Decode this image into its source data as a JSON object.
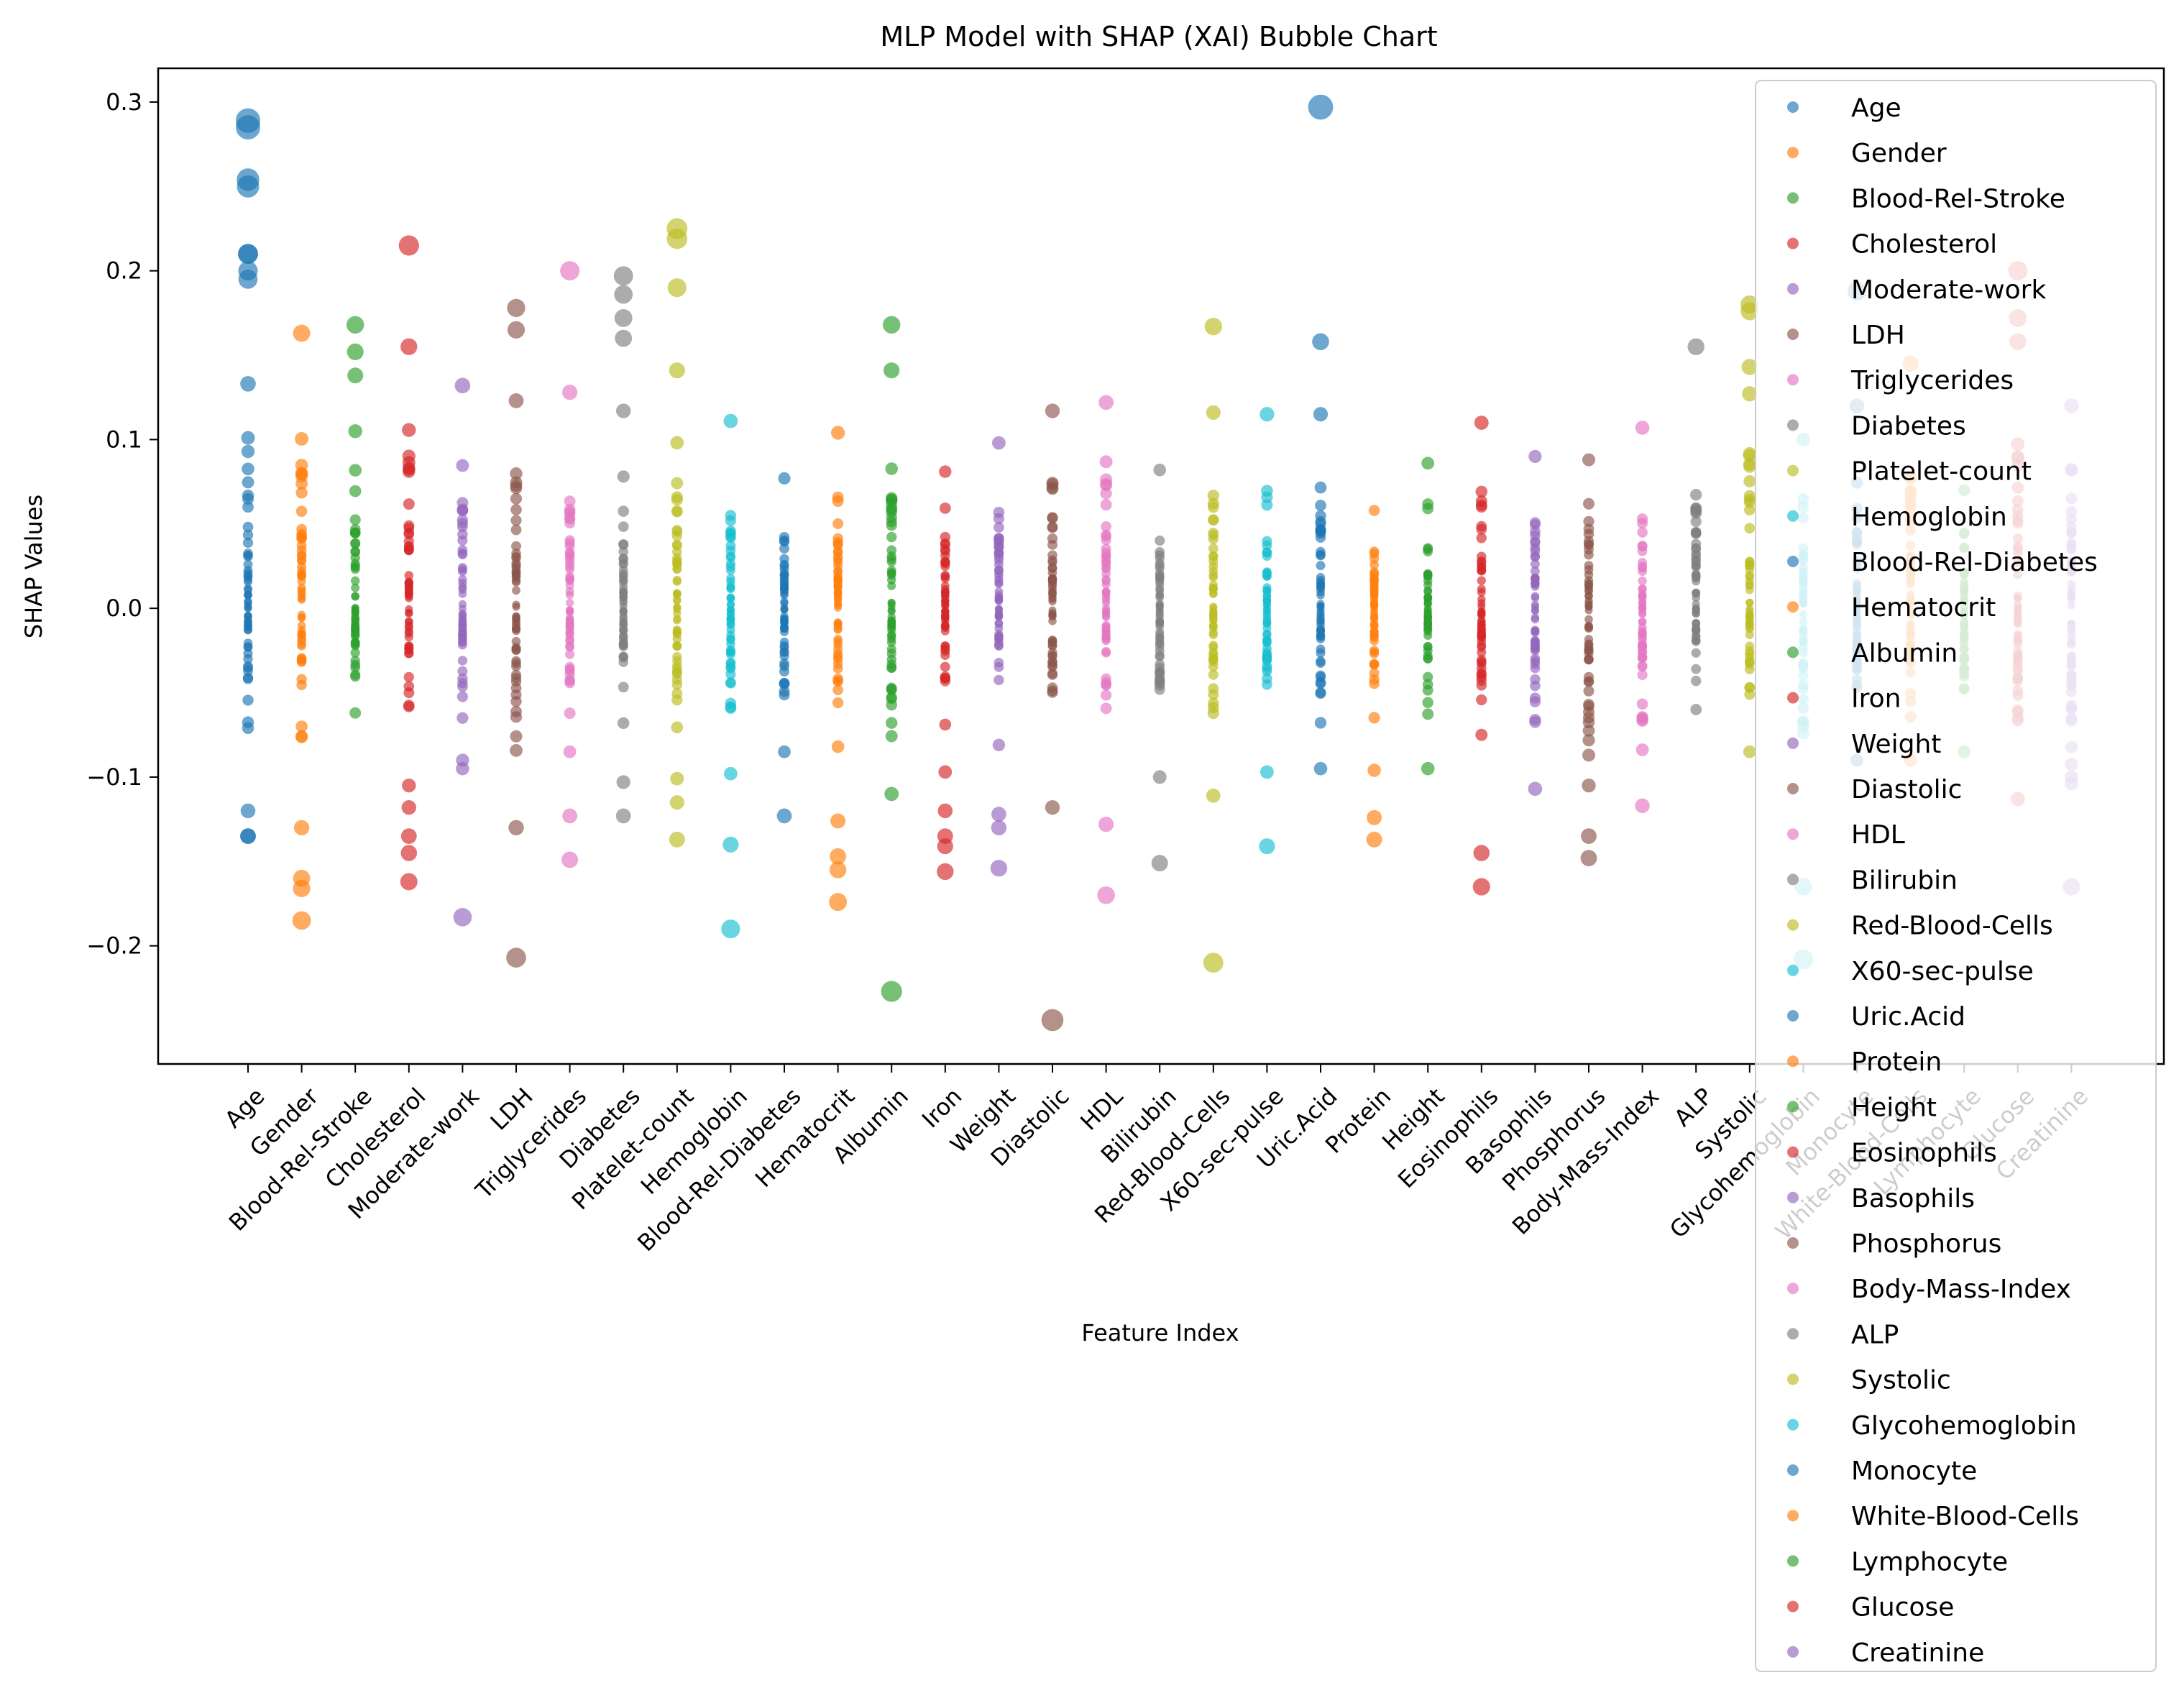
{
  "chart_data": {
    "type": "scatter",
    "title": "MLP Model with SHAP (XAI) Bubble Chart",
    "xlabel": "Feature Index",
    "ylabel": "SHAP Values",
    "ylim": [
      -0.27,
      0.32
    ],
    "yticks": [
      -0.2,
      -0.1,
      0.0,
      0.1,
      0.2,
      0.3
    ],
    "ytick_labels": [
      "−0.2",
      "−0.1",
      "0.0",
      "0.1",
      "0.2",
      "0.3"
    ],
    "legend_position": "upper right",
    "grid": false,
    "categories": [
      "Age",
      "Gender",
      "Blood-Rel-Stroke",
      "Cholesterol",
      "Moderate-work",
      "LDH",
      "Triglycerides",
      "Diabetes",
      "Platelet-count",
      "Hemoglobin",
      "Blood-Rel-Diabetes",
      "Hematocrit",
      "Albumin",
      "Iron",
      "Weight",
      "Diastolic",
      "HDL",
      "Bilirubin",
      "Red-Blood-Cells",
      "X60-sec-pulse",
      "Uric.Acid",
      "Protein",
      "Height",
      "Eosinophils",
      "Basophils",
      "Phosphorus",
      "Body-Mass-Index",
      "ALP",
      "Systolic",
      "Glycohemoglobin",
      "Monocyte",
      "White-Blood-Cells",
      "Lymphocyte",
      "Glucose",
      "Creatinine"
    ],
    "colors": [
      "#1f77b4",
      "#ff7f0e",
      "#2ca02c",
      "#d62728",
      "#9467bd",
      "#8c564b",
      "#e377c2",
      "#7f7f7f",
      "#bcbd22",
      "#17becf"
    ],
    "series": [
      {
        "name": "Age",
        "min": -0.135,
        "max": 0.21,
        "outliers": [
          0.289,
          0.285,
          0.254,
          0.25,
          0.21,
          0.2,
          0.195,
          -0.12,
          -0.135
        ]
      },
      {
        "name": "Gender",
        "min": -0.13,
        "max": 0.163,
        "outliers": [
          -0.16,
          -0.166,
          -0.185
        ]
      },
      {
        "name": "Blood-Rel-Stroke",
        "min": -0.062,
        "max": 0.138,
        "outliers": [
          0.168,
          0.152
        ]
      },
      {
        "name": "Cholesterol",
        "min": -0.105,
        "max": 0.155,
        "outliers": [
          0.215,
          -0.118,
          -0.135,
          -0.145,
          -0.162
        ]
      },
      {
        "name": "Moderate-work",
        "min": -0.065,
        "max": 0.132,
        "outliers": [
          -0.09,
          -0.095,
          -0.183
        ]
      },
      {
        "name": "LDH",
        "min": -0.13,
        "max": 0.123,
        "outliers": [
          0.178,
          0.165,
          -0.207
        ]
      },
      {
        "name": "Triglycerides",
        "min": -0.085,
        "max": 0.128,
        "outliers": [
          0.2,
          -0.123,
          -0.149
        ]
      },
      {
        "name": "Diabetes",
        "min": -0.068,
        "max": 0.117,
        "outliers": [
          0.197,
          0.186,
          0.172,
          0.16,
          -0.103,
          -0.123
        ]
      },
      {
        "name": "Platelet-count",
        "min": -0.137,
        "max": 0.141,
        "outliers": [
          0.225,
          0.219,
          0.19,
          -0.115
        ]
      },
      {
        "name": "Hemoglobin",
        "min": -0.098,
        "max": 0.111,
        "outliers": [
          -0.14,
          -0.19
        ]
      },
      {
        "name": "Blood-Rel-Diabetes",
        "min": -0.085,
        "max": 0.077,
        "outliers": [
          -0.123
        ]
      },
      {
        "name": "Hematocrit",
        "min": -0.082,
        "max": 0.104,
        "outliers": [
          -0.126,
          -0.147,
          -0.155,
          -0.174
        ]
      },
      {
        "name": "Albumin",
        "min": -0.11,
        "max": 0.141,
        "outliers": [
          0.168,
          -0.227
        ]
      },
      {
        "name": "Iron",
        "min": -0.097,
        "max": 0.081,
        "outliers": [
          -0.12,
          -0.135,
          -0.141,
          -0.156
        ]
      },
      {
        "name": "Weight",
        "min": -0.081,
        "max": 0.098,
        "outliers": [
          -0.122,
          -0.13,
          -0.154
        ]
      },
      {
        "name": "Diastolic",
        "min": -0.118,
        "max": 0.117,
        "outliers": [
          -0.244
        ]
      },
      {
        "name": "HDL",
        "min": -0.128,
        "max": 0.122,
        "outliers": [
          -0.17
        ]
      },
      {
        "name": "Bilirubin",
        "min": -0.1,
        "max": 0.082,
        "outliers": [
          -0.151
        ]
      },
      {
        "name": "Red-Blood-Cells",
        "min": -0.111,
        "max": 0.116,
        "outliers": [
          0.167,
          -0.21
        ]
      },
      {
        "name": "X60-sec-pulse",
        "min": -0.097,
        "max": 0.115,
        "outliers": [
          -0.141
        ]
      },
      {
        "name": "Uric.Acid",
        "min": -0.095,
        "max": 0.115,
        "outliers": [
          0.297,
          0.158
        ]
      },
      {
        "name": "Protein",
        "min": -0.096,
        "max": 0.058,
        "outliers": [
          -0.124,
          -0.137
        ]
      },
      {
        "name": "Height",
        "min": -0.095,
        "max": 0.086,
        "outliers": []
      },
      {
        "name": "Eosinophils",
        "min": -0.075,
        "max": 0.11,
        "outliers": [
          -0.145,
          -0.165
        ]
      },
      {
        "name": "Basophils",
        "min": -0.107,
        "max": 0.09,
        "outliers": []
      },
      {
        "name": "Phosphorus",
        "min": -0.148,
        "max": 0.088,
        "outliers": [
          -0.105,
          -0.135
        ]
      },
      {
        "name": "Body-Mass-Index",
        "min": -0.117,
        "max": 0.107,
        "outliers": []
      },
      {
        "name": "ALP",
        "min": -0.06,
        "max": 0.155,
        "outliers": []
      },
      {
        "name": "Systolic",
        "min": -0.085,
        "max": 0.18,
        "outliers": [
          0.176,
          0.143
        ]
      },
      {
        "name": "Glycohemoglobin",
        "min": -0.165,
        "max": 0.1,
        "outliers": [
          -0.208
        ]
      },
      {
        "name": "Monocyte",
        "min": -0.09,
        "max": 0.12,
        "outliers": [
          0.188
        ]
      },
      {
        "name": "White-Blood-Cells",
        "min": -0.09,
        "max": 0.145,
        "outliers": []
      },
      {
        "name": "Lymphocyte",
        "min": -0.085,
        "max": 0.07,
        "outliers": []
      },
      {
        "name": "Glucose",
        "min": -0.113,
        "max": 0.2,
        "outliers": [
          0.172,
          0.158,
          -0.065
        ]
      },
      {
        "name": "Creatinine",
        "min": -0.165,
        "max": 0.12,
        "outliers": [
          -0.1
        ]
      }
    ]
  }
}
